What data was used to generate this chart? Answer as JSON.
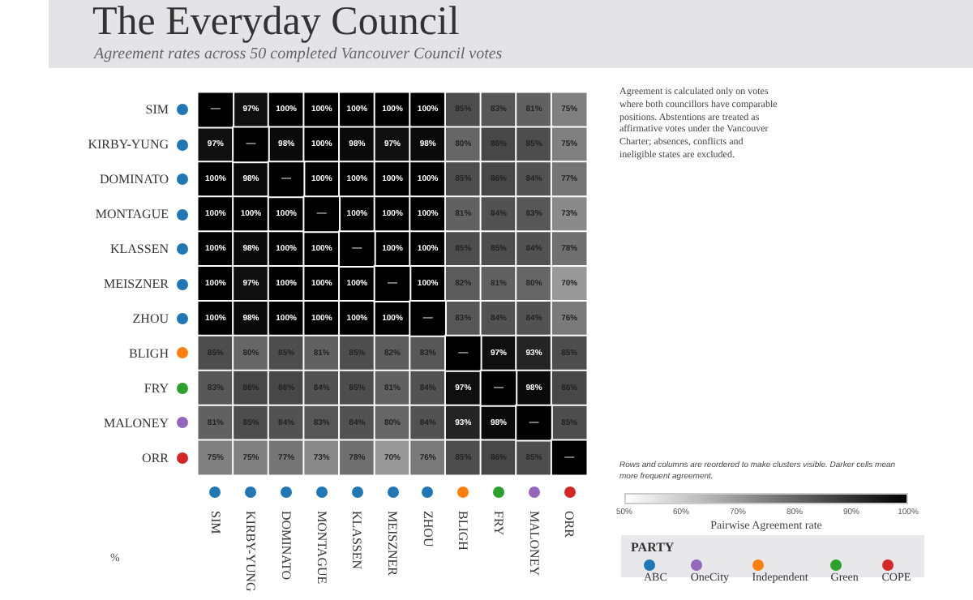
{
  "chart_data": {
    "type": "heatmap",
    "title": "The Everyday Council",
    "subtitle": "Agreement rates across 50 completed Vancouver Council votes",
    "categories": [
      "SIM",
      "KIRBY-YUNG",
      "DOMINATO",
      "MONTAGUE",
      "KLASSEN",
      "MEISZNER",
      "ZHOU",
      "BLIGH",
      "FRY",
      "MALONEY",
      "ORR"
    ],
    "y_categories": [
      "SIM",
      "KIRBY-YUNG",
      "DOMINATO",
      "MONTAGUE",
      "KLASSEN",
      "MEISZNER",
      "ZHOU",
      "BLIGH",
      "FRY",
      "MALONEY",
      "ORR"
    ],
    "colors": [
      "#1f77b4",
      "#1f77b4",
      "#1f77b4",
      "#1f77b4",
      "#1f77b4",
      "#1f77b4",
      "#1f77b4",
      "#ff7f0e",
      "#2ca02c",
      "#9467bd",
      "#d62728"
    ],
    "cells": [
      [
        null,
        97,
        100,
        100,
        100,
        100,
        100,
        85,
        83,
        81,
        75
      ],
      [
        97,
        null,
        98,
        100,
        98,
        97,
        98,
        80,
        86,
        85,
        75
      ],
      [
        100,
        98,
        null,
        100,
        100,
        100,
        100,
        85,
        86,
        84,
        77
      ],
      [
        100,
        100,
        100,
        null,
        100,
        100,
        100,
        81,
        84,
        83,
        73
      ],
      [
        100,
        98,
        100,
        100,
        null,
        100,
        100,
        85,
        85,
        84,
        78
      ],
      [
        100,
        97,
        100,
        100,
        100,
        null,
        100,
        82,
        81,
        80,
        70
      ],
      [
        100,
        98,
        100,
        100,
        100,
        100,
        null,
        83,
        84,
        84,
        76
      ],
      [
        85,
        80,
        85,
        81,
        85,
        82,
        83,
        null,
        97,
        93,
        85
      ],
      [
        83,
        86,
        86,
        84,
        85,
        81,
        84,
        97,
        null,
        98,
        86
      ],
      [
        81,
        85,
        84,
        83,
        84,
        80,
        84,
        93,
        98,
        null,
        85
      ],
      [
        75,
        75,
        77,
        73,
        78,
        70,
        76,
        85,
        86,
        85,
        null
      ]
    ],
    "cell_labels": [
      [
        "—",
        "97%",
        "100%",
        "100%",
        "100%",
        "100%",
        "100%",
        "85%",
        "83%",
        "81%",
        "75%"
      ],
      [
        "97%",
        "—",
        "98%",
        "100%",
        "98%",
        "97%",
        "98%",
        "80%",
        "86%",
        "85%",
        "75%"
      ],
      [
        "100%",
        "98%",
        "—",
        "100%",
        "100%",
        "100%",
        "100%",
        "85%",
        "86%",
        "84%",
        "77%"
      ],
      [
        "100%",
        "100%",
        "100%",
        "—",
        "100%",
        "100%",
        "100%",
        "81%",
        "84%",
        "83%",
        "73%"
      ],
      [
        "100%",
        "98%",
        "100%",
        "100%",
        "—",
        "100%",
        "100%",
        "85%",
        "85%",
        "84%",
        "78%"
      ],
      [
        "100%",
        "97%",
        "100%",
        "100%",
        "100%",
        "—",
        "100%",
        "82%",
        "81%",
        "80%",
        "70%"
      ],
      [
        "100%",
        "98%",
        "100%",
        "100%",
        "100%",
        "100%",
        "—",
        "83%",
        "84%",
        "84%",
        "76%"
      ],
      [
        "85%",
        "80%",
        "85%",
        "81%",
        "85%",
        "82%",
        "83%",
        "—",
        "97%",
        "93%",
        "85%"
      ],
      [
        "83%",
        "86%",
        "86%",
        "84%",
        "85%",
        "81%",
        "84%",
        "97%",
        "—",
        "98%",
        "86%"
      ],
      [
        "81%",
        "85%",
        "84%",
        "83%",
        "84%",
        "80%",
        "84%",
        "93%",
        "98%",
        "—",
        "85%"
      ],
      [
        "75%",
        "75%",
        "77%",
        "73%",
        "78%",
        "70%",
        "76%",
        "85%",
        "86%",
        "85%",
        "—"
      ]
    ],
    "clim": [
      50,
      100
    ],
    "cticks": [
      {
        "value": 50,
        "label": "50%"
      },
      {
        "value": 60,
        "label": "60%"
      },
      {
        "value": 70,
        "label": "70%"
      },
      {
        "value": 80,
        "label": "80%"
      },
      {
        "value": 90,
        "label": "90%"
      },
      {
        "value": 100,
        "label": "100%"
      }
    ],
    "clabel": "Pairwise Agreement rate",
    "legend_title": "PARTY",
    "legend": "bottom right",
    "series": [
      {
        "name": "ABC",
        "color": "#1f77b4",
        "values": [
          null,
          null,
          null,
          null,
          null,
          null,
          null,
          null,
          null,
          null,
          null
        ]
      },
      {
        "name": "OneCity",
        "color": "#9467bd",
        "values": [
          null,
          null,
          null,
          null,
          null,
          null,
          null,
          null,
          null,
          null,
          null
        ]
      },
      {
        "name": "Independent",
        "color": "#ff7f0e",
        "values": [
          null,
          null,
          null,
          null,
          null,
          null,
          null,
          null,
          null,
          null,
          null
        ]
      },
      {
        "name": "Green",
        "color": "#2ca02c",
        "values": [
          null,
          null,
          null,
          null,
          null,
          null,
          null,
          null,
          null,
          null,
          null
        ]
      },
      {
        "name": "COPE",
        "color": "#d62728",
        "values": [
          null,
          null,
          null,
          null,
          null,
          null,
          null,
          null,
          null,
          null,
          null
        ]
      }
    ],
    "annotations": [
      "Agreement is calculated only on votes where both councillors have comparable positions. Abstentions are treated as affirmative votes under the Vancouver Charter; absences, conflicts and ineligible states are excluded.",
      "Rows and columns are reordered to make clusters visible. Darker cells mean more frequent agreement.",
      "%"
    ]
  }
}
